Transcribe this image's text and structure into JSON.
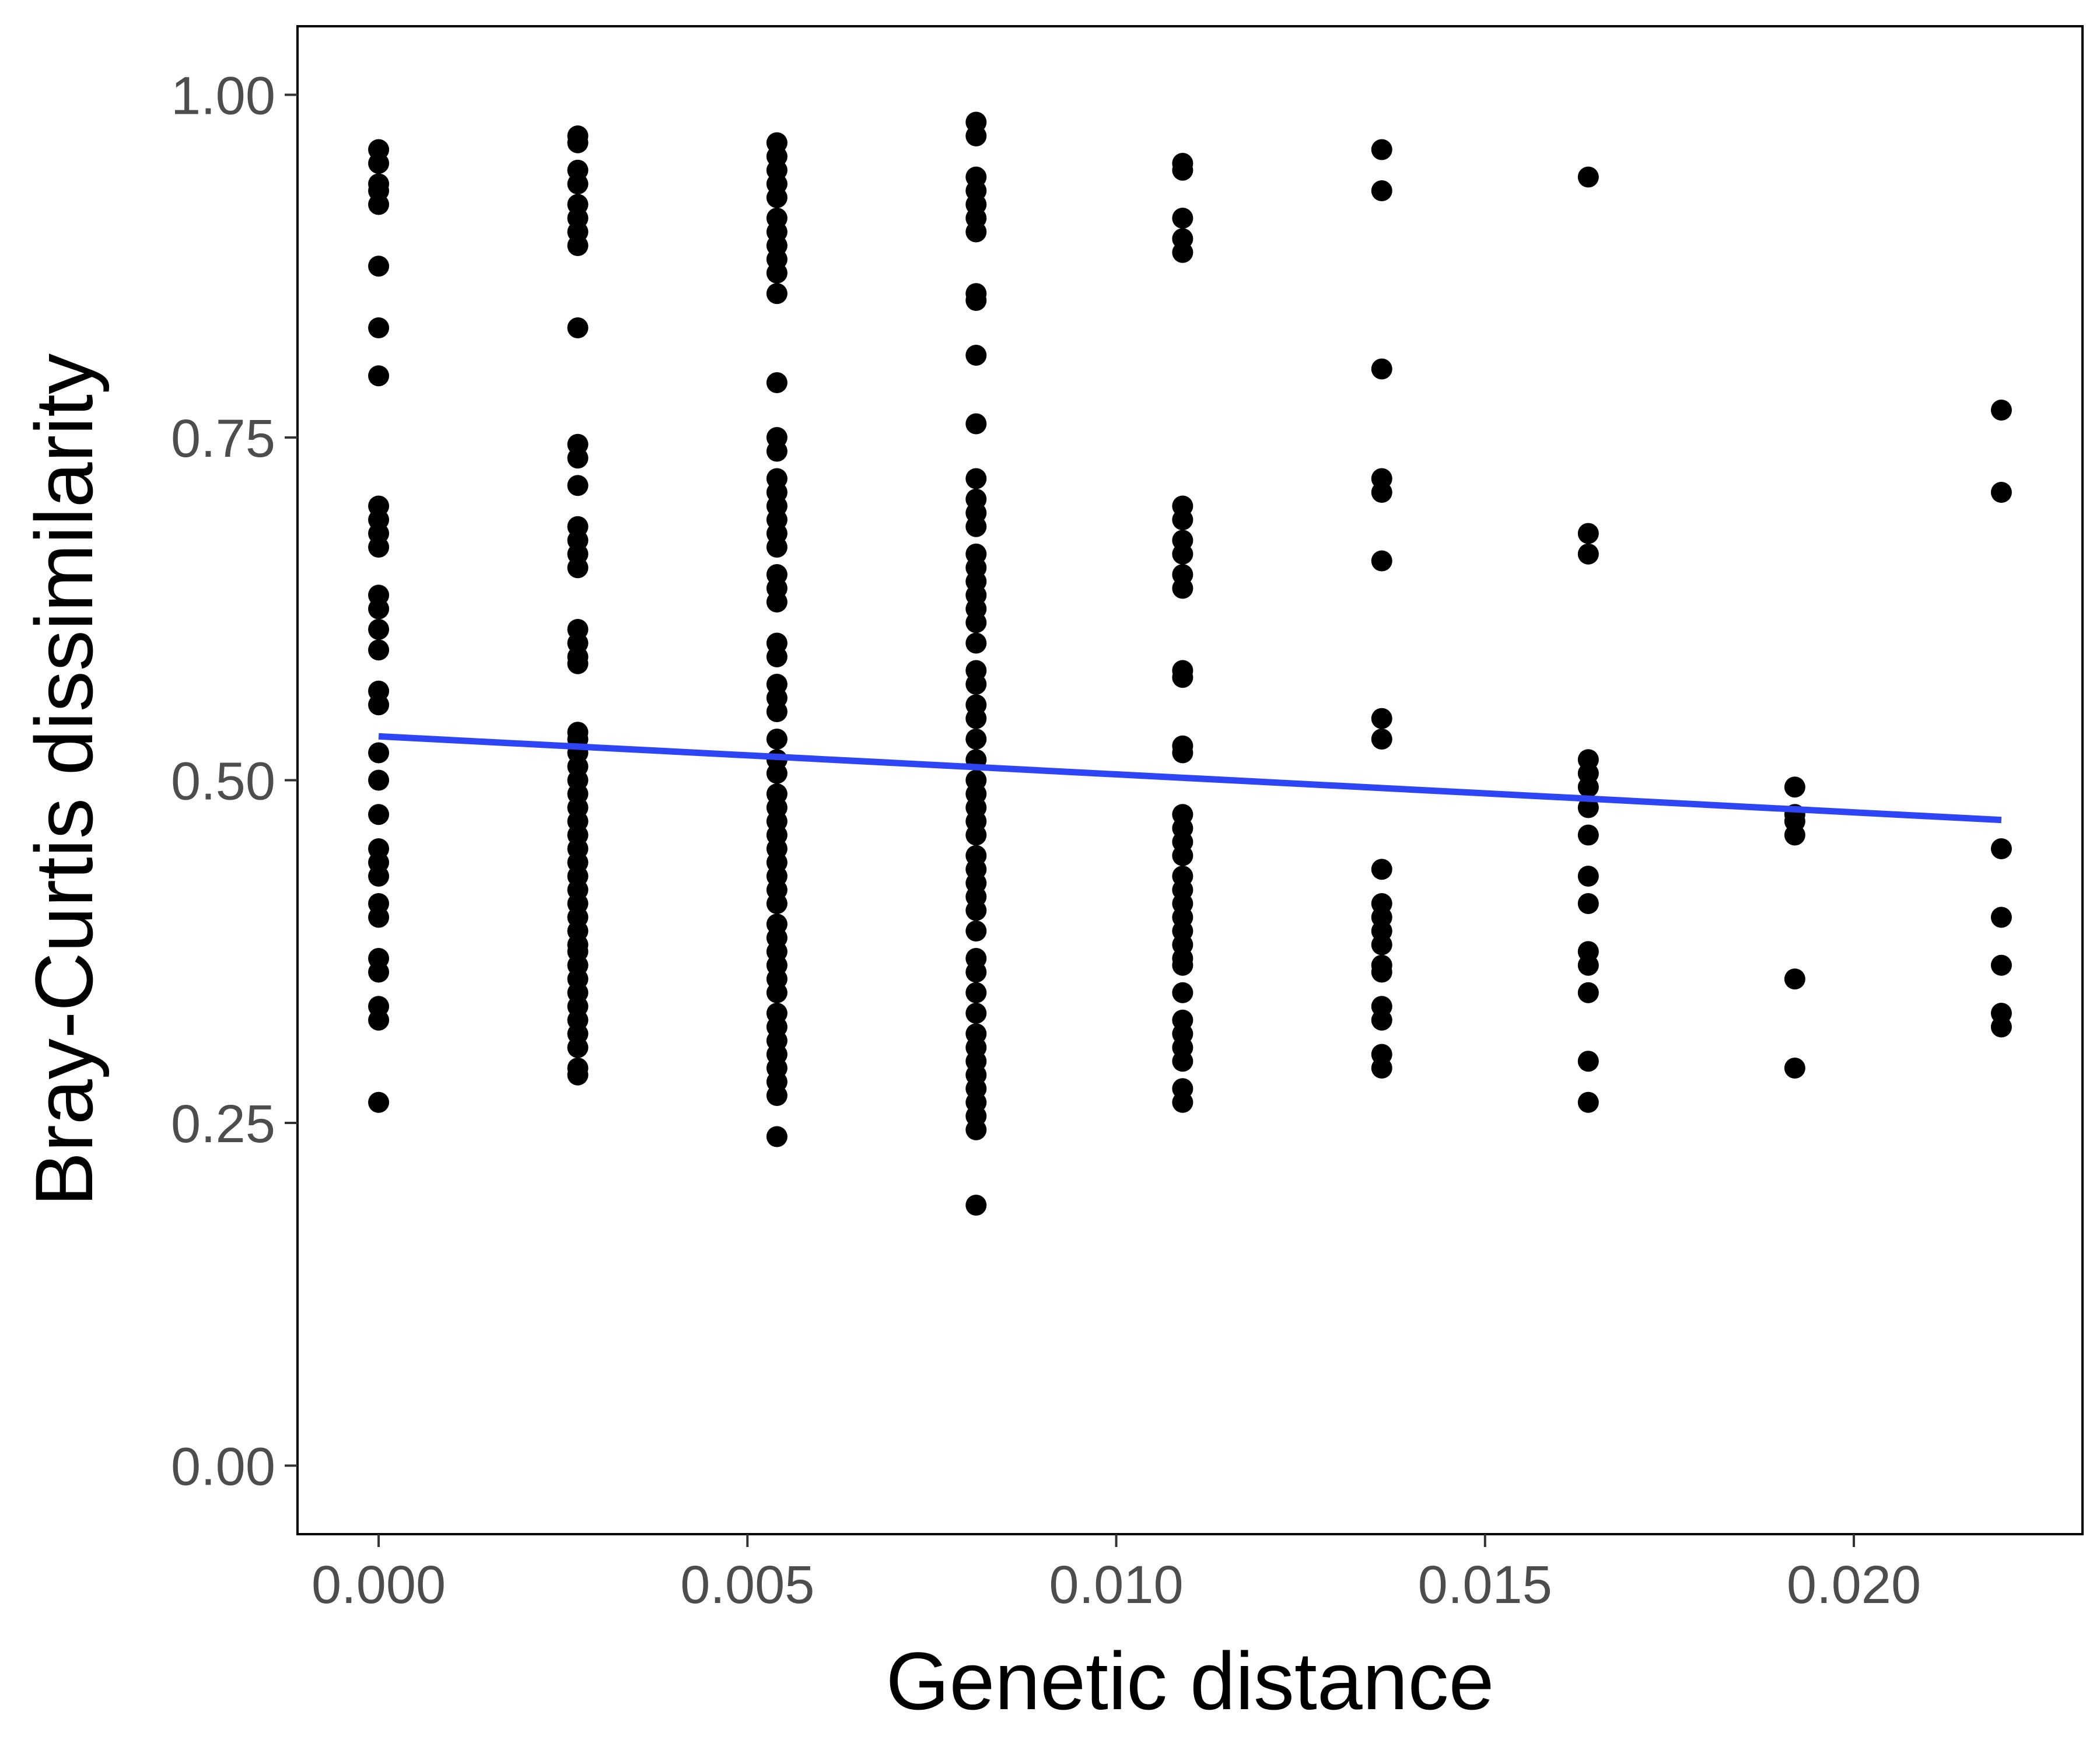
{
  "chart_data": {
    "type": "scatter",
    "title": "",
    "xlabel": "Genetic distance",
    "ylabel": "Bray-Curtis dissimilarity",
    "xlim": [
      -0.0011,
      0.0231
    ],
    "ylim": [
      -0.05,
      1.05
    ],
    "xticks": [
      0.0,
      0.005,
      0.01,
      0.015,
      0.02
    ],
    "xtick_labels": [
      "0.000",
      "0.005",
      "0.010",
      "0.015",
      "0.020"
    ],
    "yticks": [
      0.0,
      0.25,
      0.5,
      0.75,
      1.0
    ],
    "ytick_labels": [
      "0.00",
      "0.25",
      "0.50",
      "0.75",
      "1.00"
    ],
    "grid": false,
    "legend": "none",
    "point_color": "#000000",
    "fit_line": {
      "x": [
        0.0,
        0.022
      ],
      "y": [
        0.532,
        0.471
      ],
      "color": "#2e45f5"
    },
    "points": [
      {
        "x": 0.0,
        "y": 0.96
      },
      {
        "x": 0.0,
        "y": 0.95
      },
      {
        "x": 0.0,
        "y": 0.935
      },
      {
        "x": 0.0,
        "y": 0.93
      },
      {
        "x": 0.0,
        "y": 0.92
      },
      {
        "x": 0.0,
        "y": 0.875
      },
      {
        "x": 0.0,
        "y": 0.83
      },
      {
        "x": 0.0,
        "y": 0.795
      },
      {
        "x": 0.0,
        "y": 0.7
      },
      {
        "x": 0.0,
        "y": 0.69
      },
      {
        "x": 0.0,
        "y": 0.68
      },
      {
        "x": 0.0,
        "y": 0.67
      },
      {
        "x": 0.0,
        "y": 0.635
      },
      {
        "x": 0.0,
        "y": 0.625
      },
      {
        "x": 0.0,
        "y": 0.61
      },
      {
        "x": 0.0,
        "y": 0.595
      },
      {
        "x": 0.0,
        "y": 0.565
      },
      {
        "x": 0.0,
        "y": 0.555
      },
      {
        "x": 0.0,
        "y": 0.52
      },
      {
        "x": 0.0,
        "y": 0.5
      },
      {
        "x": 0.0,
        "y": 0.475
      },
      {
        "x": 0.0,
        "y": 0.45
      },
      {
        "x": 0.0,
        "y": 0.44
      },
      {
        "x": 0.0,
        "y": 0.43
      },
      {
        "x": 0.0,
        "y": 0.41
      },
      {
        "x": 0.0,
        "y": 0.4
      },
      {
        "x": 0.0,
        "y": 0.37
      },
      {
        "x": 0.0,
        "y": 0.36
      },
      {
        "x": 0.0,
        "y": 0.335
      },
      {
        "x": 0.0,
        "y": 0.325
      },
      {
        "x": 0.0,
        "y": 0.265
      },
      {
        "x": 0.0027,
        "y": 0.97
      },
      {
        "x": 0.0027,
        "y": 0.965
      },
      {
        "x": 0.0027,
        "y": 0.945
      },
      {
        "x": 0.0027,
        "y": 0.935
      },
      {
        "x": 0.0027,
        "y": 0.92
      },
      {
        "x": 0.0027,
        "y": 0.91
      },
      {
        "x": 0.0027,
        "y": 0.9
      },
      {
        "x": 0.0027,
        "y": 0.89
      },
      {
        "x": 0.0027,
        "y": 0.83
      },
      {
        "x": 0.0027,
        "y": 0.745
      },
      {
        "x": 0.0027,
        "y": 0.735
      },
      {
        "x": 0.0027,
        "y": 0.715
      },
      {
        "x": 0.0027,
        "y": 0.685
      },
      {
        "x": 0.0027,
        "y": 0.675
      },
      {
        "x": 0.0027,
        "y": 0.665
      },
      {
        "x": 0.0027,
        "y": 0.655
      },
      {
        "x": 0.0027,
        "y": 0.61
      },
      {
        "x": 0.0027,
        "y": 0.6
      },
      {
        "x": 0.0027,
        "y": 0.59
      },
      {
        "x": 0.0027,
        "y": 0.585
      },
      {
        "x": 0.0027,
        "y": 0.535
      },
      {
        "x": 0.0027,
        "y": 0.53
      },
      {
        "x": 0.0027,
        "y": 0.52
      },
      {
        "x": 0.0027,
        "y": 0.51
      },
      {
        "x": 0.0027,
        "y": 0.5
      },
      {
        "x": 0.0027,
        "y": 0.49
      },
      {
        "x": 0.0027,
        "y": 0.48
      },
      {
        "x": 0.0027,
        "y": 0.47
      },
      {
        "x": 0.0027,
        "y": 0.46
      },
      {
        "x": 0.0027,
        "y": 0.45
      },
      {
        "x": 0.0027,
        "y": 0.44
      },
      {
        "x": 0.0027,
        "y": 0.43
      },
      {
        "x": 0.0027,
        "y": 0.42
      },
      {
        "x": 0.0027,
        "y": 0.41
      },
      {
        "x": 0.0027,
        "y": 0.4
      },
      {
        "x": 0.0027,
        "y": 0.39
      },
      {
        "x": 0.0027,
        "y": 0.38
      },
      {
        "x": 0.0027,
        "y": 0.375
      },
      {
        "x": 0.0027,
        "y": 0.365
      },
      {
        "x": 0.0027,
        "y": 0.355
      },
      {
        "x": 0.0027,
        "y": 0.345
      },
      {
        "x": 0.0027,
        "y": 0.335
      },
      {
        "x": 0.0027,
        "y": 0.325
      },
      {
        "x": 0.0027,
        "y": 0.315
      },
      {
        "x": 0.0027,
        "y": 0.305
      },
      {
        "x": 0.0027,
        "y": 0.29
      },
      {
        "x": 0.0027,
        "y": 0.285
      },
      {
        "x": 0.0054,
        "y": 0.965
      },
      {
        "x": 0.0054,
        "y": 0.955
      },
      {
        "x": 0.0054,
        "y": 0.945
      },
      {
        "x": 0.0054,
        "y": 0.935
      },
      {
        "x": 0.0054,
        "y": 0.925
      },
      {
        "x": 0.0054,
        "y": 0.91
      },
      {
        "x": 0.0054,
        "y": 0.9
      },
      {
        "x": 0.0054,
        "y": 0.89
      },
      {
        "x": 0.0054,
        "y": 0.88
      },
      {
        "x": 0.0054,
        "y": 0.87
      },
      {
        "x": 0.0054,
        "y": 0.855
      },
      {
        "x": 0.0054,
        "y": 0.79
      },
      {
        "x": 0.0054,
        "y": 0.75
      },
      {
        "x": 0.0054,
        "y": 0.74
      },
      {
        "x": 0.0054,
        "y": 0.72
      },
      {
        "x": 0.0054,
        "y": 0.71
      },
      {
        "x": 0.0054,
        "y": 0.7
      },
      {
        "x": 0.0054,
        "y": 0.69
      },
      {
        "x": 0.0054,
        "y": 0.68
      },
      {
        "x": 0.0054,
        "y": 0.67
      },
      {
        "x": 0.0054,
        "y": 0.65
      },
      {
        "x": 0.0054,
        "y": 0.64
      },
      {
        "x": 0.0054,
        "y": 0.63
      },
      {
        "x": 0.0054,
        "y": 0.6
      },
      {
        "x": 0.0054,
        "y": 0.59
      },
      {
        "x": 0.0054,
        "y": 0.57
      },
      {
        "x": 0.0054,
        "y": 0.56
      },
      {
        "x": 0.0054,
        "y": 0.55
      },
      {
        "x": 0.0054,
        "y": 0.53
      },
      {
        "x": 0.0054,
        "y": 0.515
      },
      {
        "x": 0.0054,
        "y": 0.505
      },
      {
        "x": 0.0054,
        "y": 0.49
      },
      {
        "x": 0.0054,
        "y": 0.48
      },
      {
        "x": 0.0054,
        "y": 0.47
      },
      {
        "x": 0.0054,
        "y": 0.46
      },
      {
        "x": 0.0054,
        "y": 0.45
      },
      {
        "x": 0.0054,
        "y": 0.44
      },
      {
        "x": 0.0054,
        "y": 0.43
      },
      {
        "x": 0.0054,
        "y": 0.42
      },
      {
        "x": 0.0054,
        "y": 0.41
      },
      {
        "x": 0.0054,
        "y": 0.395
      },
      {
        "x": 0.0054,
        "y": 0.385
      },
      {
        "x": 0.0054,
        "y": 0.375
      },
      {
        "x": 0.0054,
        "y": 0.365
      },
      {
        "x": 0.0054,
        "y": 0.355
      },
      {
        "x": 0.0054,
        "y": 0.345
      },
      {
        "x": 0.0054,
        "y": 0.33
      },
      {
        "x": 0.0054,
        "y": 0.32
      },
      {
        "x": 0.0054,
        "y": 0.31
      },
      {
        "x": 0.0054,
        "y": 0.3
      },
      {
        "x": 0.0054,
        "y": 0.29
      },
      {
        "x": 0.0054,
        "y": 0.28
      },
      {
        "x": 0.0054,
        "y": 0.27
      },
      {
        "x": 0.0054,
        "y": 0.24
      },
      {
        "x": 0.0081,
        "y": 0.98
      },
      {
        "x": 0.0081,
        "y": 0.97
      },
      {
        "x": 0.0081,
        "y": 0.94
      },
      {
        "x": 0.0081,
        "y": 0.93
      },
      {
        "x": 0.0081,
        "y": 0.92
      },
      {
        "x": 0.0081,
        "y": 0.91
      },
      {
        "x": 0.0081,
        "y": 0.9
      },
      {
        "x": 0.0081,
        "y": 0.855
      },
      {
        "x": 0.0081,
        "y": 0.85
      },
      {
        "x": 0.0081,
        "y": 0.81
      },
      {
        "x": 0.0081,
        "y": 0.76
      },
      {
        "x": 0.0081,
        "y": 0.72
      },
      {
        "x": 0.0081,
        "y": 0.705
      },
      {
        "x": 0.0081,
        "y": 0.695
      },
      {
        "x": 0.0081,
        "y": 0.685
      },
      {
        "x": 0.0081,
        "y": 0.665
      },
      {
        "x": 0.0081,
        "y": 0.655
      },
      {
        "x": 0.0081,
        "y": 0.645
      },
      {
        "x": 0.0081,
        "y": 0.635
      },
      {
        "x": 0.0081,
        "y": 0.625
      },
      {
        "x": 0.0081,
        "y": 0.615
      },
      {
        "x": 0.0081,
        "y": 0.6
      },
      {
        "x": 0.0081,
        "y": 0.58
      },
      {
        "x": 0.0081,
        "y": 0.57
      },
      {
        "x": 0.0081,
        "y": 0.555
      },
      {
        "x": 0.0081,
        "y": 0.545
      },
      {
        "x": 0.0081,
        "y": 0.53
      },
      {
        "x": 0.0081,
        "y": 0.515
      },
      {
        "x": 0.0081,
        "y": 0.5
      },
      {
        "x": 0.0081,
        "y": 0.49
      },
      {
        "x": 0.0081,
        "y": 0.48
      },
      {
        "x": 0.0081,
        "y": 0.47
      },
      {
        "x": 0.0081,
        "y": 0.46
      },
      {
        "x": 0.0081,
        "y": 0.445
      },
      {
        "x": 0.0081,
        "y": 0.435
      },
      {
        "x": 0.0081,
        "y": 0.425
      },
      {
        "x": 0.0081,
        "y": 0.415
      },
      {
        "x": 0.0081,
        "y": 0.405
      },
      {
        "x": 0.0081,
        "y": 0.39
      },
      {
        "x": 0.0081,
        "y": 0.37
      },
      {
        "x": 0.0081,
        "y": 0.36
      },
      {
        "x": 0.0081,
        "y": 0.345
      },
      {
        "x": 0.0081,
        "y": 0.33
      },
      {
        "x": 0.0081,
        "y": 0.315
      },
      {
        "x": 0.0081,
        "y": 0.305
      },
      {
        "x": 0.0081,
        "y": 0.295
      },
      {
        "x": 0.0081,
        "y": 0.285
      },
      {
        "x": 0.0081,
        "y": 0.275
      },
      {
        "x": 0.0081,
        "y": 0.265
      },
      {
        "x": 0.0081,
        "y": 0.255
      },
      {
        "x": 0.0081,
        "y": 0.245
      },
      {
        "x": 0.0081,
        "y": 0.19
      },
      {
        "x": 0.0109,
        "y": 0.95
      },
      {
        "x": 0.0109,
        "y": 0.945
      },
      {
        "x": 0.0109,
        "y": 0.91
      },
      {
        "x": 0.0109,
        "y": 0.895
      },
      {
        "x": 0.0109,
        "y": 0.885
      },
      {
        "x": 0.0109,
        "y": 0.7
      },
      {
        "x": 0.0109,
        "y": 0.69
      },
      {
        "x": 0.0109,
        "y": 0.675
      },
      {
        "x": 0.0109,
        "y": 0.665
      },
      {
        "x": 0.0109,
        "y": 0.65
      },
      {
        "x": 0.0109,
        "y": 0.64
      },
      {
        "x": 0.0109,
        "y": 0.58
      },
      {
        "x": 0.0109,
        "y": 0.575
      },
      {
        "x": 0.0109,
        "y": 0.525
      },
      {
        "x": 0.0109,
        "y": 0.52
      },
      {
        "x": 0.0109,
        "y": 0.475
      },
      {
        "x": 0.0109,
        "y": 0.465
      },
      {
        "x": 0.0109,
        "y": 0.455
      },
      {
        "x": 0.0109,
        "y": 0.445
      },
      {
        "x": 0.0109,
        "y": 0.43
      },
      {
        "x": 0.0109,
        "y": 0.42
      },
      {
        "x": 0.0109,
        "y": 0.41
      },
      {
        "x": 0.0109,
        "y": 0.4
      },
      {
        "x": 0.0109,
        "y": 0.39
      },
      {
        "x": 0.0109,
        "y": 0.38
      },
      {
        "x": 0.0109,
        "y": 0.37
      },
      {
        "x": 0.0109,
        "y": 0.365
      },
      {
        "x": 0.0109,
        "y": 0.345
      },
      {
        "x": 0.0109,
        "y": 0.325
      },
      {
        "x": 0.0109,
        "y": 0.315
      },
      {
        "x": 0.0109,
        "y": 0.305
      },
      {
        "x": 0.0109,
        "y": 0.295
      },
      {
        "x": 0.0109,
        "y": 0.275
      },
      {
        "x": 0.0109,
        "y": 0.265
      },
      {
        "x": 0.0136,
        "y": 0.96
      },
      {
        "x": 0.0136,
        "y": 0.93
      },
      {
        "x": 0.0136,
        "y": 0.8
      },
      {
        "x": 0.0136,
        "y": 0.72
      },
      {
        "x": 0.0136,
        "y": 0.71
      },
      {
        "x": 0.0136,
        "y": 0.66
      },
      {
        "x": 0.0136,
        "y": 0.545
      },
      {
        "x": 0.0136,
        "y": 0.53
      },
      {
        "x": 0.0136,
        "y": 0.435
      },
      {
        "x": 0.0136,
        "y": 0.41
      },
      {
        "x": 0.0136,
        "y": 0.4
      },
      {
        "x": 0.0136,
        "y": 0.39
      },
      {
        "x": 0.0136,
        "y": 0.38
      },
      {
        "x": 0.0136,
        "y": 0.365
      },
      {
        "x": 0.0136,
        "y": 0.36
      },
      {
        "x": 0.0136,
        "y": 0.335
      },
      {
        "x": 0.0136,
        "y": 0.325
      },
      {
        "x": 0.0136,
        "y": 0.3
      },
      {
        "x": 0.0136,
        "y": 0.29
      },
      {
        "x": 0.0164,
        "y": 0.94
      },
      {
        "x": 0.0164,
        "y": 0.68
      },
      {
        "x": 0.0164,
        "y": 0.665
      },
      {
        "x": 0.0164,
        "y": 0.515
      },
      {
        "x": 0.0164,
        "y": 0.505
      },
      {
        "x": 0.0164,
        "y": 0.495
      },
      {
        "x": 0.0164,
        "y": 0.48
      },
      {
        "x": 0.0164,
        "y": 0.46
      },
      {
        "x": 0.0164,
        "y": 0.43
      },
      {
        "x": 0.0164,
        "y": 0.41
      },
      {
        "x": 0.0164,
        "y": 0.375
      },
      {
        "x": 0.0164,
        "y": 0.365
      },
      {
        "x": 0.0164,
        "y": 0.345
      },
      {
        "x": 0.0164,
        "y": 0.295
      },
      {
        "x": 0.0164,
        "y": 0.265
      },
      {
        "x": 0.0192,
        "y": 0.495
      },
      {
        "x": 0.0192,
        "y": 0.475
      },
      {
        "x": 0.0192,
        "y": 0.47
      },
      {
        "x": 0.0192,
        "y": 0.46
      },
      {
        "x": 0.0192,
        "y": 0.355
      },
      {
        "x": 0.0192,
        "y": 0.29
      },
      {
        "x": 0.022,
        "y": 0.77
      },
      {
        "x": 0.022,
        "y": 0.71
      },
      {
        "x": 0.022,
        "y": 0.45
      },
      {
        "x": 0.022,
        "y": 0.4
      },
      {
        "x": 0.022,
        "y": 0.365
      },
      {
        "x": 0.022,
        "y": 0.33
      },
      {
        "x": 0.022,
        "y": 0.32
      }
    ]
  }
}
